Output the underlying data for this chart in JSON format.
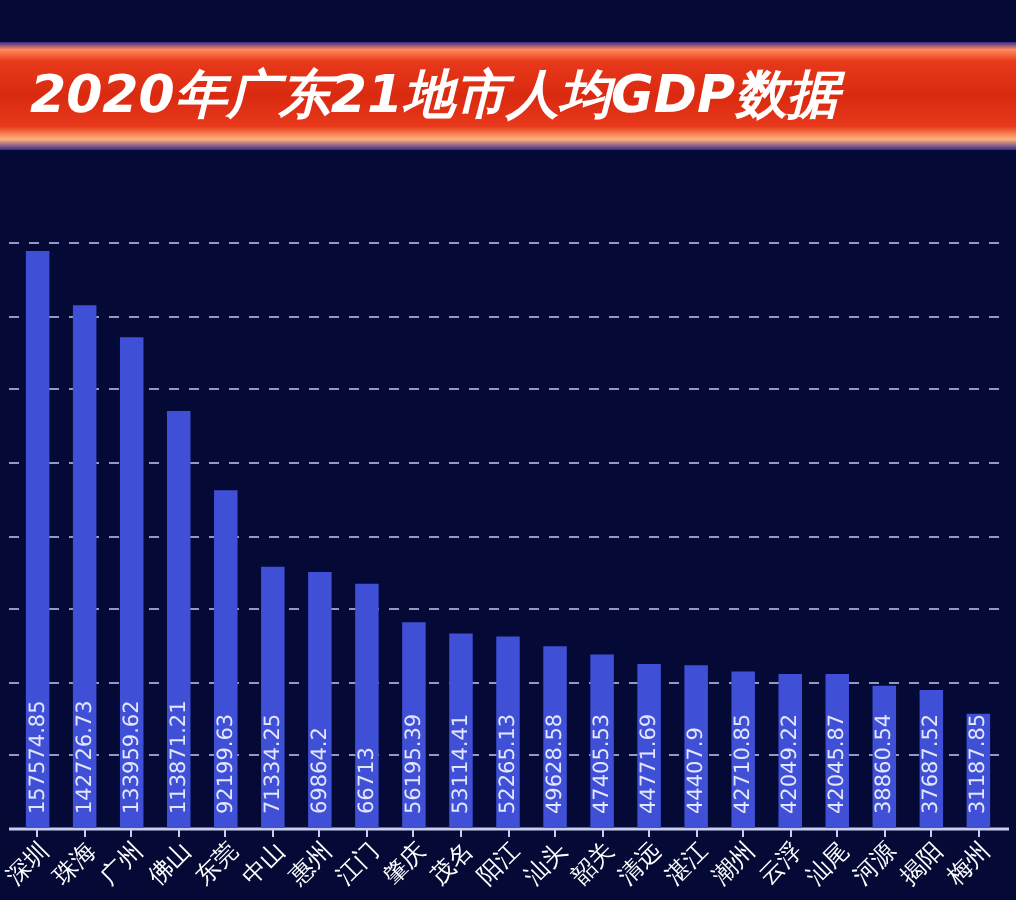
{
  "chart_data": {
    "type": "bar",
    "title": "2020年广东21地市人均GDP数据",
    "categories": [
      "深圳",
      "珠海",
      "广州",
      "佛山",
      "东莞",
      "中山",
      "惠州",
      "江门",
      "肇庆",
      "茂名",
      "阳江",
      "汕头",
      "韶关",
      "清远",
      "湛江",
      "潮州",
      "云浮",
      "汕尾",
      "河源",
      "揭阳",
      "梅州"
    ],
    "values": [
      157574.85,
      142726.73,
      133959.62,
      113871.21,
      92199.63,
      71334.25,
      69864.2,
      66713,
      56195.39,
      53114.41,
      52265.13,
      49628.58,
      47405.53,
      44771.69,
      44407.9,
      42710.85,
      42049.22,
      42045.87,
      38860.54,
      37687.52,
      31187.85
    ],
    "color": "#3f4fd6",
    "ylim": [
      0,
      160000
    ],
    "yticks": [
      {
        "value": 20000,
        "label": null
      },
      {
        "value": 40000,
        "label": null
      },
      {
        "value": 60000,
        "label": null
      },
      {
        "value": 80000,
        "label": null
      },
      {
        "value": 100000,
        "label": null
      },
      {
        "value": 120000,
        "label": null
      },
      {
        "value": 140000,
        "label": null
      },
      {
        "value": 160000,
        "label": null
      }
    ],
    "grid": "y",
    "tick_labels": "x",
    "data_labels": true
  }
}
